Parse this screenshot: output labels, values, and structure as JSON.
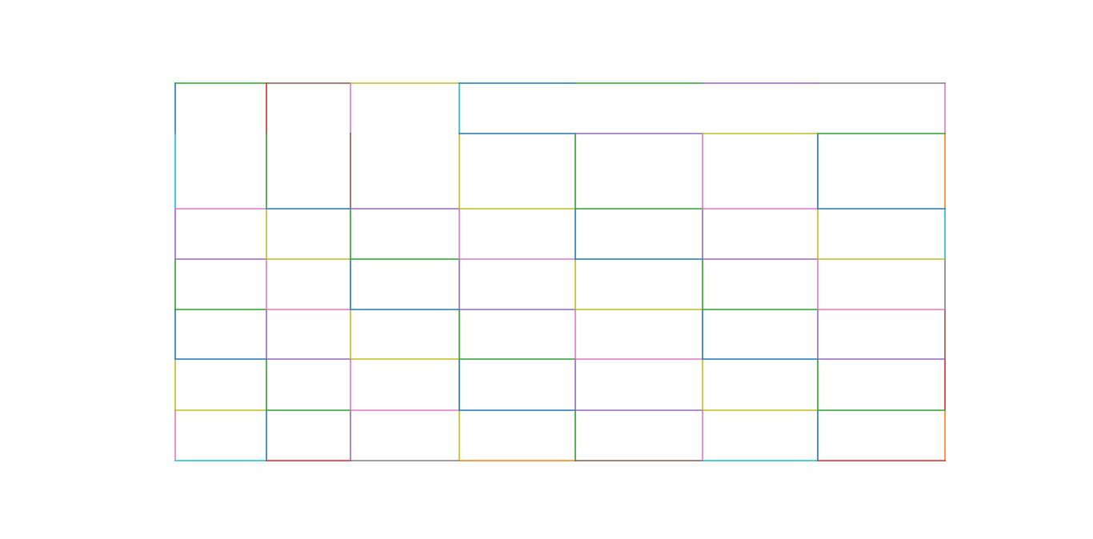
{
  "palette": {
    "blue": "#1f77b4",
    "orange": "#ff7f0e",
    "green": "#2ca02c",
    "red": "#d62728",
    "purple": "#9467bd",
    "brown": "#8c564b",
    "pink": "#e377c2",
    "gray": "#7f7f7f",
    "olive": "#bcbd22",
    "cyan": "#17becf"
  },
  "table": {
    "horizontal_edges": [
      [
        "green",
        "brown",
        "olive",
        "blue",
        "green",
        "purple",
        "gray"
      ],
      [
        null,
        null,
        null,
        "blue",
        "purple",
        "olive",
        "green"
      ],
      [
        "pink",
        "blue",
        "purple",
        "olive",
        "green",
        "pink",
        "blue"
      ],
      [
        "purple",
        "olive",
        "green",
        "pink",
        "blue",
        "purple",
        "olive"
      ],
      [
        "green",
        "pink",
        "blue",
        "purple",
        "olive",
        "green",
        "pink"
      ],
      [
        "blue",
        "purple",
        "olive",
        "green",
        "pink",
        "blue",
        "purple"
      ],
      [
        "olive",
        "green",
        "pink",
        "blue",
        "purple",
        "olive",
        "green"
      ],
      [
        "cyan",
        "red",
        "gray",
        "orange",
        "brown",
        "cyan",
        "red"
      ]
    ],
    "vertical_edges": [
      [
        "blue",
        "red",
        "pink",
        "cyan",
        null,
        null,
        null,
        "pink"
      ],
      [
        "cyan",
        "green",
        "brown",
        "olive",
        "green",
        "pink",
        "blue",
        "orange"
      ],
      [
        "purple",
        "olive",
        "green",
        "pink",
        "blue",
        "purple",
        "olive",
        "cyan"
      ],
      [
        "green",
        "pink",
        "blue",
        "purple",
        "olive",
        "green",
        "pink",
        "gray"
      ],
      [
        "blue",
        "purple",
        "olive",
        "green",
        "pink",
        "blue",
        "purple",
        "brown"
      ],
      [
        "olive",
        "green",
        "pink",
        "blue",
        "purple",
        "olive",
        "green",
        "red"
      ],
      [
        "pink",
        "blue",
        "purple",
        "olive",
        "green",
        "pink",
        "blue",
        "orange"
      ]
    ]
  }
}
